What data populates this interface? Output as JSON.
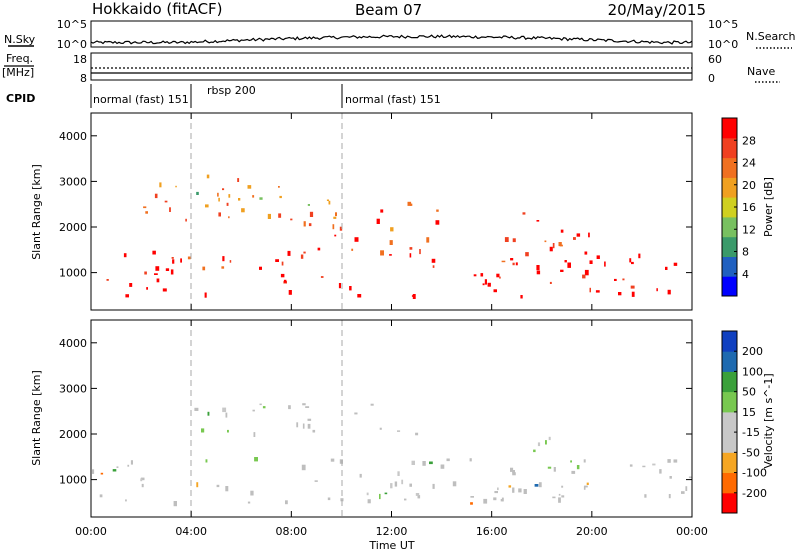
{
  "header": {
    "title": "Hokkaido (fitACF)",
    "beam": "Beam 07",
    "date": "20/May/2015"
  },
  "strips": {
    "nsky_label": "N.Sky",
    "nsky_ticks": [
      "10^5",
      "10^0"
    ],
    "nsearch_label": "N.Search",
    "nsearch_ticks": [
      "10^5",
      "10^0"
    ],
    "freq_label": "Freq.",
    "freq_unit": "[MHz]",
    "freq_ticks": [
      "18",
      "8"
    ],
    "nave_label": "Nave",
    "nave_ticks": [
      "60",
      "0"
    ],
    "cpid_label": "CPID",
    "cpid_segments": [
      "normal (fast) 151",
      "rbsp 200",
      "normal (fast) 151"
    ]
  },
  "colors": {
    "power_scale": [
      "#0000ff",
      "#2060c0",
      "#3a9a6a",
      "#78c060",
      "#d0d020",
      "#f0a020",
      "#f07020",
      "#f04020",
      "#ff0000"
    ],
    "velocity_scale": [
      "#ff0000",
      "#ff6a00",
      "#f5a623",
      "#c8c8c8",
      "#c8c8c8",
      "#78c850",
      "#3aa03a",
      "#1e6ab0",
      "#1040c0"
    ],
    "ground_scatter": "#bebebe"
  },
  "chart_data": [
    {
      "type": "heatmap",
      "panel": "power",
      "ylabel": "Slant Range [km]",
      "xlabel": "Time UT",
      "xticks": [
        "00:00",
        "04:00",
        "08:00",
        "12:00",
        "16:00",
        "20:00",
        "00:00"
      ],
      "yticks": [
        "1000",
        "2000",
        "3000",
        "4000"
      ],
      "xlim_hours": [
        0,
        24
      ],
      "ylim_km": [
        180,
        4500
      ],
      "colorbar_label": "Power [dB]",
      "colorbar_ticks": [
        "28",
        "24",
        "20",
        "16",
        "12",
        "8",
        "4"
      ],
      "colorbar_range": [
        0,
        30
      ],
      "features": [
        {
          "t0": 0.0,
          "t1": 24.0,
          "r0": 500,
          "r1": 1500,
          "level": 28
        },
        {
          "t0": 2.0,
          "t1": 8.5,
          "r0": 2100,
          "r1": 3200,
          "level": 22
        },
        {
          "t0": 8.0,
          "t1": 14.0,
          "r0": 1500,
          "r1": 2600,
          "level": 24
        },
        {
          "t0": 16.5,
          "t1": 20.0,
          "r0": 1000,
          "r1": 2400,
          "level": 26
        },
        {
          "t0": 4.0,
          "t1": 10.0,
          "r0": 2400,
          "r1": 2800,
          "level": 14
        }
      ]
    },
    {
      "type": "heatmap",
      "panel": "velocity",
      "ylabel": "Slant Range [km]",
      "xlabel": "Time UT",
      "xticks": [
        "00:00",
        "04:00",
        "08:00",
        "12:00",
        "16:00",
        "20:00",
        "00:00"
      ],
      "yticks": [
        "1000",
        "2000",
        "3000",
        "4000"
      ],
      "xlim_hours": [
        0,
        24
      ],
      "ylim_km": [
        180,
        4500
      ],
      "colorbar_label": "Velocity [m s^-1]",
      "colorbar_ticks": [
        "200",
        "100",
        "50",
        "15",
        "-15",
        "-50",
        "-100",
        "-200"
      ],
      "colorbar_range": [
        -250,
        250
      ],
      "features": [
        {
          "t0": 0.0,
          "t1": 24.0,
          "r0": 500,
          "r1": 1500,
          "velocity": 0
        },
        {
          "t0": 11.0,
          "t1": 13.0,
          "r0": 700,
          "r1": 1600,
          "velocity": -60
        },
        {
          "t0": 17.5,
          "t1": 19.5,
          "r0": 900,
          "r1": 2100,
          "velocity": 60
        },
        {
          "t0": 4.0,
          "t1": 14.0,
          "r0": 2000,
          "r1": 2700,
          "velocity": 0
        }
      ]
    }
  ]
}
